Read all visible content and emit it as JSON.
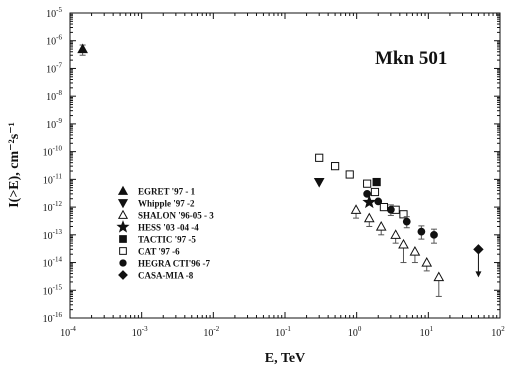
{
  "chart_data": {
    "type": "scatter",
    "title": "",
    "annotation": "Mkn 501",
    "xlabel": "E, TeV",
    "ylabel": "I(>E), cm⁻²s⁻¹",
    "xscale": "log",
    "yscale": "log",
    "xlim": [
      0.0001,
      100
    ],
    "ylim": [
      1e-16,
      1e-05
    ],
    "x_tick_exponents": [
      -4,
      -3,
      -2,
      -1,
      0,
      1,
      2
    ],
    "y_tick_exponents": [
      -16,
      -15,
      -14,
      -13,
      -12,
      -11,
      -10,
      -9,
      -8,
      -7,
      -6,
      -5
    ],
    "legend_position": "lower-left",
    "series": [
      {
        "name": "EGRET '97 - 1",
        "marker": "triangle-up-filled",
        "points": [
          {
            "x": 0.00015,
            "y": 5e-07,
            "err_low": 2e-07,
            "err_high": 2e-07
          }
        ]
      },
      {
        "name": "Whipple '97 -2",
        "marker": "triangle-down-filled",
        "points": [
          {
            "x": 0.3,
            "y": 8e-12
          }
        ]
      },
      {
        "name": "SHALON '96-05 - 3",
        "marker": "triangle-up-open",
        "points": [
          {
            "x": 0.98,
            "y": 8e-13,
            "err_low": 4e-13,
            "err_high": 0
          },
          {
            "x": 1.5,
            "y": 4e-13,
            "err_low": 2e-13,
            "err_high": 0
          },
          {
            "x": 2.2,
            "y": 2e-13,
            "err_low": 1e-13,
            "err_high": 0
          },
          {
            "x": 3.5,
            "y": 1e-13,
            "err_low": 5e-14,
            "err_high": 0
          },
          {
            "x": 4.5,
            "y": 4.5e-14,
            "err_low": 3.5e-14,
            "err_high": 0
          },
          {
            "x": 6.5,
            "y": 2.5e-14,
            "err_low": 1.5e-14,
            "err_high": 0
          },
          {
            "x": 9.5,
            "y": 1e-14,
            "err_low": 5e-15,
            "err_high": 0
          },
          {
            "x": 14,
            "y": 3e-15,
            "err_low": 2.4e-15,
            "err_high": 0
          }
        ]
      },
      {
        "name": "HESS '03 -04 -4",
        "marker": "star-filled",
        "points": [
          {
            "x": 1.5,
            "y": 1.5e-12
          }
        ]
      },
      {
        "name": "TACTIC '97 -5",
        "marker": "square-filled",
        "points": [
          {
            "x": 1.9,
            "y": 8e-12
          }
        ]
      },
      {
        "name": "CAT '97 -6",
        "marker": "square-open",
        "points": [
          {
            "x": 0.3,
            "y": 6e-11
          },
          {
            "x": 0.5,
            "y": 3e-11
          },
          {
            "x": 0.8,
            "y": 1.5e-11
          },
          {
            "x": 1.4,
            "y": 7e-12
          },
          {
            "x": 1.8,
            "y": 3.5e-12
          },
          {
            "x": 2.4,
            "y": 1e-12
          },
          {
            "x": 3.5,
            "y": 8e-13
          },
          {
            "x": 4.5,
            "y": 5.5e-13
          }
        ]
      },
      {
        "name": "HEGRA CTI'96 -7",
        "marker": "circle-filled",
        "points": [
          {
            "x": 1.4,
            "y": 3e-12
          },
          {
            "x": 2.0,
            "y": 1.6e-12
          },
          {
            "x": 3.0,
            "y": 8e-13,
            "err_low": 3e-13,
            "err_high": 4e-13
          },
          {
            "x": 5.0,
            "y": 3e-13,
            "err_low": 1.2e-13,
            "err_high": 1.5e-13
          },
          {
            "x": 8.0,
            "y": 1.3e-13,
            "err_low": 6e-14,
            "err_high": 8e-14
          },
          {
            "x": 12,
            "y": 1e-13,
            "err_low": 5e-14,
            "err_high": 6e-14
          }
        ]
      },
      {
        "name": "CASA-MIA -8",
        "marker": "diamond-filled",
        "upper_limit": true,
        "points": [
          {
            "x": 50,
            "y": 3e-14
          }
        ]
      }
    ]
  }
}
